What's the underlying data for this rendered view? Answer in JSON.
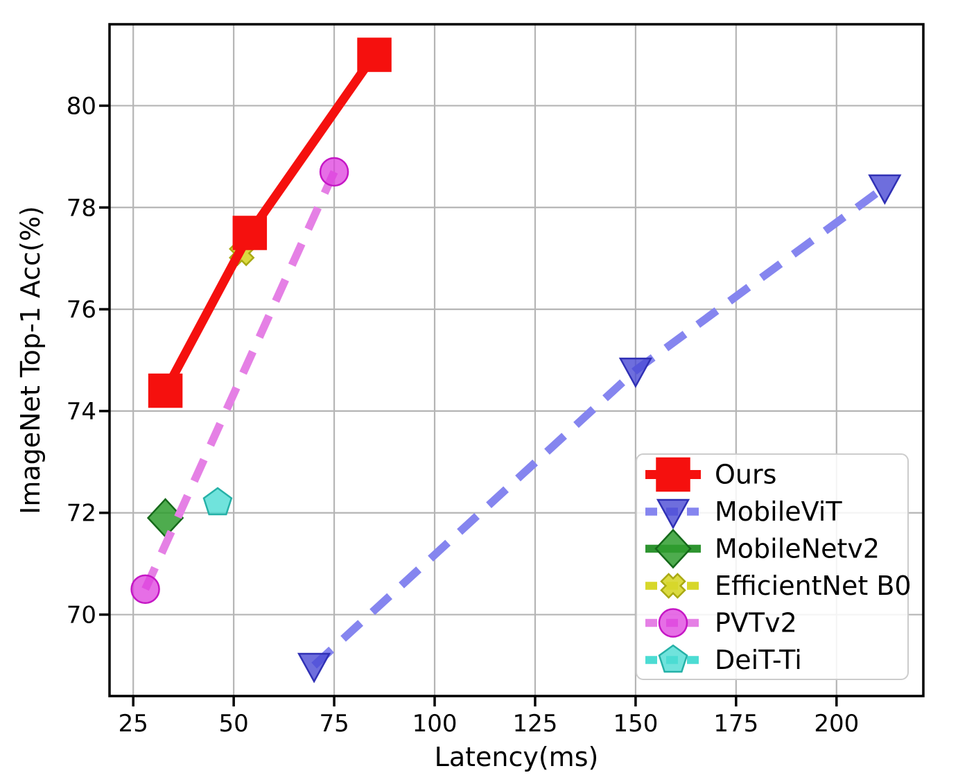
{
  "figure": {
    "background": "#ffffff",
    "plot_background": "#ffffff",
    "spine_color": "#000000",
    "grid_color": "#b5b5b5",
    "legend_frame_color": "#cccccc"
  },
  "chart_data": {
    "type": "line",
    "title": "",
    "xlabel": "Latency(ms)",
    "ylabel": "ImageNet Top-1 Acc(%)",
    "xlim": [
      19.1,
      221.6
    ],
    "ylim": [
      68.4,
      81.6
    ],
    "x_ticks": [
      25,
      50,
      75,
      100,
      125,
      150,
      175,
      200
    ],
    "y_ticks": [
      70,
      72,
      74,
      76,
      78,
      80
    ],
    "grid": true,
    "legend_position": "lower right",
    "legend_entries": [
      "Ours",
      "MobileViT",
      "MobileNetv2",
      "EfficientNet B0",
      "PVTv2",
      "DeiT-Ti"
    ],
    "series": [
      {
        "name": "DeiT-Ti",
        "marker": "pentagon",
        "line_style": "dashed",
        "line_color": "#4cdcd3",
        "marker_fill": "#4cdcd3",
        "marker_edge": "#25b1a7",
        "fill_opacity": 0.8,
        "x": [
          46
        ],
        "y": [
          72.2
        ]
      },
      {
        "name": "MobileNetv2",
        "marker": "diamond",
        "line_style": "solid",
        "line_color": "#2e9430",
        "marker_fill": "#2f9e2f",
        "marker_edge": "#15691a",
        "fill_opacity": 0.85,
        "x": [
          33
        ],
        "y": [
          71.9
        ]
      },
      {
        "name": "EfficientNet B0",
        "marker": "x",
        "line_style": "dashed",
        "line_color": "#d7d72b",
        "marker_fill": "#d7d72b",
        "marker_edge": "#a9a913",
        "fill_opacity": 0.9,
        "x": [
          52
        ],
        "y": [
          77.1
        ]
      },
      {
        "name": "PVTv2",
        "marker": "circle",
        "line_style": "dashed",
        "line_color": "#e580e5",
        "marker_fill": "#dd3ddd",
        "marker_edge": "#c516c5",
        "fill_opacity": 0.75,
        "x": [
          28,
          75
        ],
        "y": [
          70.5,
          78.7
        ]
      },
      {
        "name": "MobileViT",
        "marker": "triangle-down",
        "line_style": "dashed",
        "line_color": "#8585ef",
        "marker_fill": "#4a4ad4",
        "marker_edge": "#3030b5",
        "fill_opacity": 0.8,
        "x": [
          70,
          150,
          212
        ],
        "y": [
          69.0,
          74.8,
          78.4
        ]
      },
      {
        "name": "Ours",
        "marker": "square",
        "line_style": "solid",
        "line_color": "#f5100e",
        "marker_fill": "#f5100e",
        "marker_edge": "#f5100e",
        "fill_opacity": 1,
        "x": [
          33,
          54,
          85
        ],
        "y": [
          74.4,
          77.5,
          81.0
        ]
      }
    ]
  }
}
